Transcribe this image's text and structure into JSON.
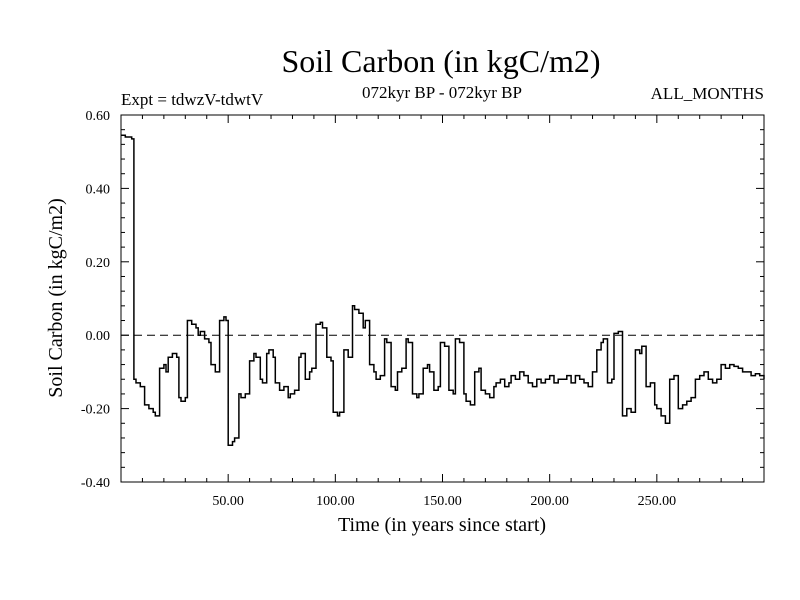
{
  "chart_data": {
    "type": "line",
    "title": "Soil Carbon (in kgC/m2)",
    "subtitle_left": "Expt = tdwzV-tdwtV",
    "subtitle_center": "072kyr BP - 072kyr BP",
    "subtitle_right": "ALL_MONTHS",
    "xlabel": "Time (in years since start)",
    "ylabel": "Soil Carbon (in kgC/m2)",
    "xlim": [
      0,
      300
    ],
    "ylim": [
      -0.4,
      0.6
    ],
    "x_ticks": [
      50,
      100,
      150,
      200,
      250
    ],
    "x_tick_labels": [
      "50.00",
      "100.00",
      "150.00",
      "200.00",
      "250.00"
    ],
    "y_ticks": [
      -0.4,
      -0.2,
      0.0,
      0.2,
      0.4,
      0.6
    ],
    "y_tick_labels": [
      "-0.40",
      "-0.20",
      "0.00",
      "0.20",
      "0.40",
      "0.60"
    ],
    "reference_line": {
      "y": 0.0,
      "style": "dashed"
    },
    "series": [
      {
        "name": "Soil Carbon",
        "x": [
          0,
          2,
          5,
          6,
          7,
          9,
          11,
          13,
          15,
          16,
          18,
          20,
          21,
          22,
          24,
          26,
          27,
          28,
          30,
          31,
          33,
          35,
          36,
          37,
          39,
          41,
          42,
          44,
          46,
          48,
          49,
          50,
          52,
          53,
          55,
          56,
          58,
          60,
          62,
          63,
          65,
          66,
          68,
          69,
          71,
          72,
          74,
          76,
          78,
          79,
          81,
          83,
          84,
          86,
          88,
          89,
          91,
          93,
          94,
          96,
          98,
          99,
          101,
          102,
          104,
          106,
          108,
          109,
          111,
          113,
          114,
          116,
          118,
          119,
          121,
          123,
          124,
          126,
          128,
          129,
          131,
          133,
          134,
          136,
          138,
          139,
          141,
          143,
          144,
          146,
          148,
          149,
          151,
          153,
          155,
          156,
          158,
          160,
          161,
          163,
          165,
          167,
          168,
          170,
          172,
          174,
          175,
          177,
          179,
          181,
          182,
          184,
          186,
          188,
          190,
          192,
          194,
          196,
          198,
          200,
          202,
          204,
          206,
          208,
          210,
          212,
          214,
          216,
          218,
          220,
          222,
          224,
          225,
          227,
          229,
          230,
          232,
          234,
          236,
          238,
          240,
          242,
          243,
          245,
          247,
          249,
          250,
          252,
          254,
          256,
          258,
          260,
          262,
          264,
          266,
          268,
          270,
          272,
          274,
          276,
          278,
          280,
          282,
          284,
          286,
          288,
          290,
          292,
          294,
          296,
          298,
          300
        ],
        "values": [
          0.545,
          0.54,
          0.535,
          -0.12,
          -0.13,
          -0.14,
          -0.19,
          -0.2,
          -0.21,
          -0.22,
          -0.09,
          -0.08,
          -0.1,
          -0.06,
          -0.05,
          -0.06,
          -0.17,
          -0.18,
          -0.17,
          0.04,
          0.03,
          0.02,
          0.0,
          0.01,
          -0.01,
          -0.02,
          -0.08,
          -0.1,
          0.04,
          0.05,
          0.04,
          -0.3,
          -0.29,
          -0.28,
          -0.16,
          -0.17,
          -0.16,
          -0.07,
          -0.05,
          -0.06,
          -0.12,
          -0.13,
          -0.05,
          -0.04,
          -0.06,
          -0.13,
          -0.15,
          -0.14,
          -0.17,
          -0.16,
          -0.15,
          -0.06,
          -0.05,
          -0.12,
          -0.1,
          -0.09,
          0.03,
          0.035,
          0.02,
          -0.06,
          -0.07,
          -0.21,
          -0.22,
          -0.21,
          -0.04,
          -0.06,
          0.08,
          0.07,
          0.06,
          0.02,
          0.04,
          -0.08,
          -0.1,
          -0.12,
          -0.11,
          -0.01,
          -0.02,
          -0.14,
          -0.15,
          -0.1,
          -0.09,
          -0.01,
          -0.02,
          -0.16,
          -0.17,
          -0.16,
          -0.09,
          -0.08,
          -0.1,
          -0.15,
          -0.14,
          -0.02,
          -0.03,
          -0.15,
          -0.16,
          -0.01,
          -0.02,
          -0.16,
          -0.18,
          -0.19,
          -0.1,
          -0.09,
          -0.15,
          -0.16,
          -0.17,
          -0.14,
          -0.13,
          -0.12,
          -0.14,
          -0.13,
          -0.11,
          -0.12,
          -0.1,
          -0.11,
          -0.13,
          -0.14,
          -0.12,
          -0.13,
          -0.12,
          -0.11,
          -0.13,
          -0.12,
          -0.12,
          -0.11,
          -0.13,
          -0.11,
          -0.12,
          -0.13,
          -0.14,
          -0.1,
          -0.04,
          -0.02,
          -0.01,
          -0.13,
          -0.12,
          0.005,
          0.01,
          -0.22,
          -0.2,
          -0.21,
          -0.04,
          -0.05,
          -0.03,
          -0.14,
          -0.13,
          -0.19,
          -0.2,
          -0.22,
          -0.24,
          -0.12,
          -0.11,
          -0.2,
          -0.19,
          -0.18,
          -0.17,
          -0.12,
          -0.11,
          -0.1,
          -0.12,
          -0.13,
          -0.12,
          -0.08,
          -0.09,
          -0.08,
          -0.085,
          -0.09,
          -0.1,
          -0.1,
          -0.11,
          -0.105,
          -0.11,
          -0.12
        ]
      }
    ]
  }
}
